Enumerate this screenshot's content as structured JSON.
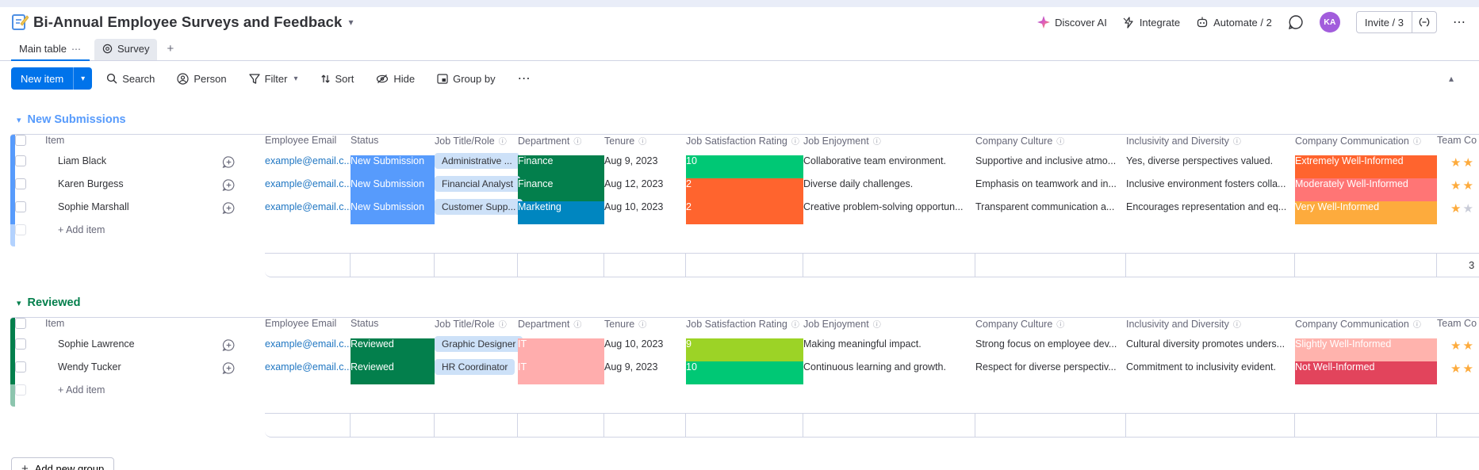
{
  "header": {
    "title": "Bi-Annual Employee Surveys and Feedback",
    "discover_ai": "Discover AI",
    "integrate": "Integrate",
    "automate": "Automate / 2",
    "avatar": "KA",
    "invite": "Invite / 3"
  },
  "tabs": {
    "main_table": "Main table",
    "survey": "Survey"
  },
  "toolbar": {
    "new_item": "New item",
    "search": "Search",
    "person": "Person",
    "filter": "Filter",
    "sort": "Sort",
    "hide": "Hide",
    "group_by": "Group by"
  },
  "board": {
    "columns": [
      {
        "key": "item",
        "label": "Item",
        "info": false
      },
      {
        "key": "email",
        "label": "Employee Email",
        "info": false
      },
      {
        "key": "status",
        "label": "Status",
        "info": false
      },
      {
        "key": "job_title",
        "label": "Job Title/Role",
        "info": true
      },
      {
        "key": "department",
        "label": "Department",
        "info": true
      },
      {
        "key": "tenure",
        "label": "Tenure",
        "info": true
      },
      {
        "key": "rating",
        "label": "Job Satisfaction Rating",
        "info": true
      },
      {
        "key": "enjoyment",
        "label": "Job Enjoyment",
        "info": true
      },
      {
        "key": "culture",
        "label": "Company Culture",
        "info": true
      },
      {
        "key": "inclusivity",
        "label": "Inclusivity and Diversity",
        "info": true
      },
      {
        "key": "communication",
        "label": "Company Communication",
        "info": true
      },
      {
        "key": "stars",
        "label": "Team Co",
        "info": false
      }
    ],
    "add_item_label": "+ Add item",
    "add_new_group": "Add new group",
    "star_color": "#fdab3d",
    "star_gray": "#c9ccd8",
    "groups": [
      {
        "name": "New Submissions",
        "color": "#579bfc",
        "summary_count": "3",
        "rows": [
          {
            "item": "Liam Black",
            "email": "example@email.c...",
            "status": {
              "label": "New Submission",
              "bg": "#579bfc"
            },
            "job_title": "Administrative ...",
            "department": {
              "label": "Finance",
              "bg": "#037f4c"
            },
            "tenure": "Aug 9, 2023",
            "rating": {
              "label": "10",
              "bg": "#00c875"
            },
            "enjoyment": "Collaborative team environment.",
            "culture": "Supportive and inclusive atmo...",
            "inclusivity": "Yes, diverse perspectives valued.",
            "communication": {
              "label": "Extremely Well-Informed",
              "bg": "#ff642e"
            },
            "stars": {
              "filled": 2,
              "gray": 0
            }
          },
          {
            "item": "Karen Burgess",
            "email": "example@email.c...",
            "status": {
              "label": "New Submission",
              "bg": "#579bfc"
            },
            "job_title": "Financial Analyst",
            "department": {
              "label": "Finance",
              "bg": "#037f4c"
            },
            "tenure": "Aug 12, 2023",
            "rating": {
              "label": "2",
              "bg": "#ff642e"
            },
            "enjoyment": "Diverse daily challenges.",
            "culture": "Emphasis on teamwork and in...",
            "inclusivity": "Inclusive environment fosters colla...",
            "communication": {
              "label": "Moderately Well-Informed",
              "bg": "#ff7575"
            },
            "stars": {
              "filled": 2,
              "gray": 0
            }
          },
          {
            "item": "Sophie Marshall",
            "email": "example@email.c...",
            "status": {
              "label": "New Submission",
              "bg": "#579bfc"
            },
            "job_title": "Customer Supp...",
            "department": {
              "label": "Marketing",
              "bg": "#0086c0"
            },
            "tenure": "Aug 10, 2023",
            "rating": {
              "label": "2",
              "bg": "#ff642e"
            },
            "enjoyment": "Creative problem-solving opportun...",
            "culture": "Transparent communication a...",
            "inclusivity": "Encourages representation and eq...",
            "communication": {
              "label": "Very Well-Informed",
              "bg": "#fdab3d"
            },
            "stars": {
              "filled": 1,
              "gray": 1
            }
          }
        ]
      },
      {
        "name": "Reviewed",
        "color": "#037f4c",
        "summary_count": "",
        "rows": [
          {
            "item": "Sophie Lawrence",
            "email": "example@email.c...",
            "status": {
              "label": "Reviewed",
              "bg": "#037f4c"
            },
            "job_title": "Graphic Designer",
            "department": {
              "label": "IT",
              "bg": "#ffadad"
            },
            "tenure": "Aug 10, 2023",
            "rating": {
              "label": "9",
              "bg": "#9cd326"
            },
            "enjoyment": "Making meaningful impact.",
            "culture": "Strong focus on employee dev...",
            "inclusivity": "Cultural diversity promotes unders...",
            "communication": {
              "label": "Slightly Well-Informed",
              "bg": "#ffb3ad"
            },
            "stars": {
              "filled": 2,
              "gray": 0
            }
          },
          {
            "item": "Wendy Tucker",
            "email": "example@email.c...",
            "status": {
              "label": "Reviewed",
              "bg": "#037f4c"
            },
            "job_title": "HR Coordinator",
            "department": {
              "label": "IT",
              "bg": "#ffadad"
            },
            "tenure": "Aug 9, 2023",
            "rating": {
              "label": "10",
              "bg": "#00c875"
            },
            "enjoyment": "Continuous learning and growth.",
            "culture": "Respect for diverse perspectiv...",
            "inclusivity": "Commitment to inclusivity evident.",
            "communication": {
              "label": "Not Well-Informed",
              "bg": "#e2445c"
            },
            "stars": {
              "filled": 2,
              "gray": 0
            }
          }
        ]
      }
    ]
  }
}
